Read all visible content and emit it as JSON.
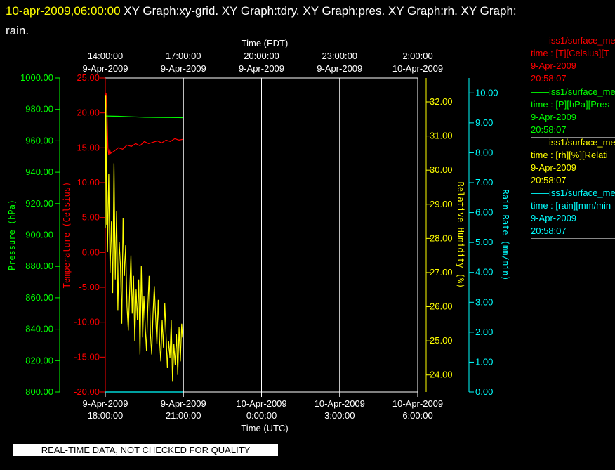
{
  "header": {
    "timestamp": "10-apr-2009,06:00:00",
    "graphs_line1": "XY Graph:xy-grid.  XY Graph:tdry.  XY Graph:pres.  XY Graph:rh.  XY Graph:",
    "graphs_line2": "rain."
  },
  "warning": "REAL-TIME DATA, NOT CHECKED FOR QUALITY",
  "legend": [
    {
      "name": "iss1/surface_me",
      "line2": "time : [T][Celsius][T",
      "line3": "9-Apr-2009",
      "line4": "20:58:07",
      "color": "#ff0000"
    },
    {
      "name": "iss1/surface_me",
      "line2": "time : [P][hPa][Pres",
      "line3": "9-Apr-2009",
      "line4": "20:58:07",
      "color": "#00ff00"
    },
    {
      "name": "iss1/surface_me",
      "line2": "time : [rh][%][Relati",
      "line3": "9-Apr-2009",
      "line4": "20:58:07",
      "color": "#ffff00"
    },
    {
      "name": "iss1/surface_me",
      "line2": "time : [rain][mm/min",
      "line3": "9-Apr-2009",
      "line4": "20:58:07",
      "color": "#00ffff"
    }
  ],
  "chart_data": {
    "type": "line",
    "grid": true,
    "xlabel_top": "Time (EDT)",
    "xlabel_bottom": "Time (UTC)",
    "xlim": [
      "2009-04-09 18:00",
      "2009-04-10 06:00"
    ],
    "x_ticks_top": [
      {
        "time": "14:00:00",
        "date": "9-Apr-2009"
      },
      {
        "time": "17:00:00",
        "date": "9-Apr-2009"
      },
      {
        "time": "20:00:00",
        "date": "9-Apr-2009"
      },
      {
        "time": "23:00:00",
        "date": "9-Apr-2009"
      },
      {
        "time": "2:00:00",
        "date": "10-Apr-2009"
      }
    ],
    "x_ticks_bottom": [
      {
        "date": "9-Apr-2009",
        "time": "18:00:00"
      },
      {
        "date": "9-Apr-2009",
        "time": "21:00:00"
      },
      {
        "date": "10-Apr-2009",
        "time": "0:00:00"
      },
      {
        "date": "10-Apr-2009",
        "time": "3:00:00"
      },
      {
        "date": "10-Apr-2009",
        "time": "6:00:00"
      }
    ],
    "axes": {
      "pressure": {
        "label": "Pressure (hPa)",
        "ylim": [
          800,
          1000
        ],
        "ticks": [
          "1000.00",
          "980.00",
          "960.00",
          "940.00",
          "920.00",
          "900.00",
          "880.00",
          "860.00",
          "840.00",
          "820.00",
          "800.00"
        ],
        "color": "#00ff00"
      },
      "temperature": {
        "label": "Temperature (Celsius)",
        "ylim": [
          -20,
          25
        ],
        "ticks": [
          "25.00",
          "20.00",
          "15.00",
          "10.00",
          "5.00",
          "0.00",
          "-5.00",
          "-10.00",
          "-15.00",
          "-20.00"
        ],
        "color": "#ff0000"
      },
      "rh": {
        "label": "Relative Humidity (%)",
        "ylim": [
          23.5,
          32.7
        ],
        "ticks": [
          "32.00",
          "31.00",
          "30.00",
          "29.00",
          "28.00",
          "27.00",
          "26.00",
          "25.00",
          "24.00"
        ],
        "color": "#ffff00"
      },
      "rain": {
        "label": "Rain Rate (mm/min)",
        "ylim": [
          0,
          10.5
        ],
        "ticks": [
          "10.00",
          "9.00",
          "8.00",
          "7.00",
          "6.00",
          "5.00",
          "4.00",
          "3.00",
          "2.00",
          "1.00",
          "0.00"
        ],
        "color": "#00ffff"
      }
    },
    "series": [
      {
        "axis": "temperature",
        "color": "#ff0000",
        "x": [
          "2009-04-09 18:00",
          "2009-04-09 18:02",
          "2009-04-09 18:04",
          "2009-04-09 18:06",
          "2009-04-09 18:08",
          "2009-04-09 18:10",
          "2009-04-09 18:12",
          "2009-04-09 18:20",
          "2009-04-09 18:30",
          "2009-04-09 18:40",
          "2009-04-09 18:50",
          "2009-04-09 19:00",
          "2009-04-09 19:10",
          "2009-04-09 19:20",
          "2009-04-09 19:30",
          "2009-04-09 19:40",
          "2009-04-09 19:50",
          "2009-04-09 20:00",
          "2009-04-09 20:10",
          "2009-04-09 20:20",
          "2009-04-09 20:30",
          "2009-04-09 20:40",
          "2009-04-09 20:50",
          "2009-04-09 20:58"
        ],
        "y": [
          18.0,
          22.8,
          20.0,
          15.0,
          14.0,
          14.8,
          14.2,
          14.5,
          15.0,
          14.8,
          15.4,
          15.2,
          15.6,
          15.3,
          15.9,
          15.6,
          15.8,
          16.0,
          15.7,
          16.1,
          15.9,
          16.3,
          16.1,
          16.2
        ]
      },
      {
        "axis": "pressure",
        "color": "#00ff00",
        "x": [
          "2009-04-09 18:00",
          "2009-04-09 18:30",
          "2009-04-09 19:00",
          "2009-04-09 19:30",
          "2009-04-09 20:00",
          "2009-04-09 20:30",
          "2009-04-09 20:58"
        ],
        "y": [
          975.8,
          975.6,
          975.3,
          975.0,
          974.9,
          974.8,
          974.7
        ]
      },
      {
        "axis": "rh",
        "color": "#ffff00",
        "x": [
          "2009-04-09 18:00",
          "2009-04-09 18:01",
          "2009-04-09 18:02",
          "2009-04-09 18:03",
          "2009-04-09 18:04",
          "2009-04-09 18:05",
          "2009-04-09 18:08",
          "2009-04-09 18:11",
          "2009-04-09 18:14",
          "2009-04-09 18:17",
          "2009-04-09 18:20",
          "2009-04-09 18:23",
          "2009-04-09 18:26",
          "2009-04-09 18:29",
          "2009-04-09 18:32",
          "2009-04-09 18:35",
          "2009-04-09 18:38",
          "2009-04-09 18:41",
          "2009-04-09 18:44",
          "2009-04-09 18:47",
          "2009-04-09 18:50",
          "2009-04-09 18:53",
          "2009-04-09 18:56",
          "2009-04-09 18:59",
          "2009-04-09 19:02",
          "2009-04-09 19:05",
          "2009-04-09 19:08",
          "2009-04-09 19:11",
          "2009-04-09 19:14",
          "2009-04-09 19:17",
          "2009-04-09 19:20",
          "2009-04-09 19:23",
          "2009-04-09 19:26",
          "2009-04-09 19:29",
          "2009-04-09 19:32",
          "2009-04-09 19:35",
          "2009-04-09 19:38",
          "2009-04-09 19:41",
          "2009-04-09 19:44",
          "2009-04-09 19:47",
          "2009-04-09 19:50",
          "2009-04-09 19:53",
          "2009-04-09 19:56",
          "2009-04-09 19:59",
          "2009-04-09 20:02",
          "2009-04-09 20:05",
          "2009-04-09 20:08",
          "2009-04-09 20:11",
          "2009-04-09 20:14",
          "2009-04-09 20:17",
          "2009-04-09 20:20",
          "2009-04-09 20:23",
          "2009-04-09 20:26",
          "2009-04-09 20:29",
          "2009-04-09 20:32",
          "2009-04-09 20:35",
          "2009-04-09 20:38",
          "2009-04-09 20:41",
          "2009-04-09 20:44",
          "2009-04-09 20:47",
          "2009-04-09 20:50",
          "2009-04-09 20:53",
          "2009-04-09 20:56",
          "2009-04-09 20:58"
        ],
        "y": [
          28.3,
          32.2,
          31.0,
          28.4,
          29.4,
          27.6,
          29.9,
          27.0,
          28.5,
          26.4,
          30.2,
          26.8,
          28.8,
          25.9,
          27.9,
          27.2,
          25.5,
          28.6,
          26.9,
          27.8,
          26.0,
          25.3,
          26.4,
          27.5,
          25.8,
          26.9,
          25.0,
          26.5,
          25.6,
          26.8,
          24.6,
          27.2,
          25.1,
          26.3,
          25.4,
          24.7,
          26.0,
          26.9,
          25.2,
          24.6,
          25.8,
          26.6,
          25.7,
          24.9,
          26.2,
          25.0,
          24.4,
          25.6,
          24.8,
          26.1,
          25.2,
          24.2,
          25.0,
          24.5,
          25.6,
          23.8,
          24.9,
          24.3,
          25.2,
          24.0,
          25.4,
          24.4,
          25.5,
          25.1
        ]
      },
      {
        "axis": "rain",
        "color": "#00ffff",
        "x": [
          "2009-04-09 18:00",
          "2009-04-09 20:58"
        ],
        "y": [
          0.0,
          0.0
        ]
      }
    ]
  }
}
